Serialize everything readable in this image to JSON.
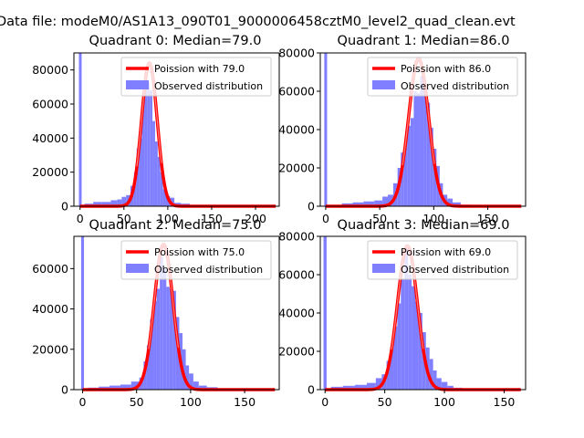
{
  "suptitle": "Data file: modeM0/AS1A13_090T01_9000006458cztM0_level2_quad_clean.evt",
  "colors": {
    "hist": "#7f7fff",
    "pdf": "#ff0000",
    "frame": "#000000"
  },
  "chart_data": [
    {
      "type": "bar",
      "title": "Quadrant 0: Median=79.0",
      "median": 79.0,
      "xlim": [
        -7,
        227
      ],
      "ylim": [
        0,
        90000
      ],
      "xticks": [
        0,
        50,
        100,
        150,
        200
      ],
      "yticks": [
        0,
        20000,
        40000,
        60000,
        80000
      ],
      "legend": {
        "position": "upper-right",
        "entries": [
          "Poission with 79.0",
          "Observed distribution"
        ]
      },
      "zero_bin_count": 90000,
      "histogram": {
        "x": [
          10,
          20,
          30,
          40,
          45,
          50,
          55,
          60,
          63,
          66,
          69,
          72,
          75,
          78,
          81,
          84,
          87,
          90,
          93,
          96,
          100,
          105,
          110,
          120,
          130
        ],
        "counts": [
          1500,
          2500,
          2500,
          3500,
          4000,
          5500,
          6500,
          12000,
          20000,
          34000,
          40000,
          63000,
          78000,
          73000,
          68000,
          50000,
          38000,
          29000,
          20000,
          10000,
          6000,
          5000,
          2000,
          1500,
          800
        ]
      },
      "pdf": {
        "mean": 79.0,
        "peak": 84000
      }
    },
    {
      "type": "bar",
      "title": "Quadrant 1: Median=86.0",
      "median": 86.0,
      "xlim": [
        -5,
        185
      ],
      "ylim": [
        0,
        80000
      ],
      "xticks": [
        0,
        50,
        100,
        150
      ],
      "yticks": [
        0,
        20000,
        40000,
        60000,
        80000
      ],
      "legend": {
        "position": "upper-right",
        "entries": [
          "Poission with 86.0",
          "Observed distribution"
        ]
      },
      "zero_bin_count": 80000,
      "histogram": {
        "x": [
          20,
          30,
          40,
          50,
          55,
          60,
          65,
          68,
          71,
          74,
          77,
          80,
          83,
          86,
          89,
          92,
          95,
          98,
          101,
          104,
          107,
          110,
          115,
          120,
          130
        ],
        "counts": [
          1500,
          2000,
          2500,
          3000,
          5000,
          6000,
          12000,
          20000,
          28000,
          33000,
          42000,
          46000,
          60000,
          59000,
          68000,
          62000,
          54000,
          41000,
          30000,
          21000,
          12000,
          6000,
          4000,
          2000,
          800
        ]
      },
      "pdf": {
        "mean": 86.0,
        "peak": 77000
      }
    },
    {
      "type": "bar",
      "title": "Quadrant 2: Median=75.0",
      "median": 75.0,
      "xlim": [
        -8,
        182
      ],
      "ylim": [
        0,
        76000
      ],
      "xticks": [
        0,
        50,
        100,
        150
      ],
      "yticks": [
        0,
        20000,
        40000,
        60000
      ],
      "legend": {
        "position": "upper-right",
        "entries": [
          "Poission with 75.0",
          "Observed distribution"
        ]
      },
      "zero_bin_count": 76000,
      "histogram": {
        "x": [
          10,
          20,
          30,
          40,
          50,
          55,
          58,
          61,
          64,
          67,
          70,
          73,
          76,
          79,
          82,
          85,
          88,
          91,
          94,
          97,
          100,
          105,
          110,
          120,
          130
        ],
        "counts": [
          1000,
          1500,
          2000,
          2500,
          4000,
          6000,
          14000,
          22000,
          35000,
          44000,
          50000,
          66000,
          60000,
          51000,
          50000,
          49000,
          36000,
          28000,
          20000,
          12000,
          8000,
          4000,
          2000,
          1200,
          600
        ]
      },
      "pdf": {
        "mean": 75.0,
        "peak": 72000
      }
    },
    {
      "type": "bar",
      "title": "Quadrant 3: Median=69.0",
      "median": 69.0,
      "xlim": [
        -4,
        168
      ],
      "ylim": [
        0,
        80000
      ],
      "xticks": [
        0,
        50,
        100,
        150
      ],
      "yticks": [
        0,
        20000,
        40000,
        60000,
        80000
      ],
      "legend": {
        "position": "upper-right",
        "entries": [
          "Poission with 69.0",
          "Observed distribution"
        ]
      },
      "zero_bin_count": 80000,
      "histogram": {
        "x": [
          10,
          20,
          30,
          40,
          45,
          50,
          53,
          56,
          59,
          62,
          65,
          68,
          71,
          74,
          77,
          80,
          83,
          86,
          89,
          92,
          95,
          100,
          105,
          110,
          120
        ],
        "counts": [
          1500,
          2000,
          2500,
          3500,
          6000,
          8000,
          15000,
          22000,
          33000,
          45000,
          58000,
          74000,
          60000,
          54000,
          46000,
          40000,
          30000,
          22000,
          16000,
          10000,
          6000,
          4000,
          2000,
          1000,
          600
        ]
      },
      "pdf": {
        "mean": 69.0,
        "peak": 75000
      }
    }
  ]
}
